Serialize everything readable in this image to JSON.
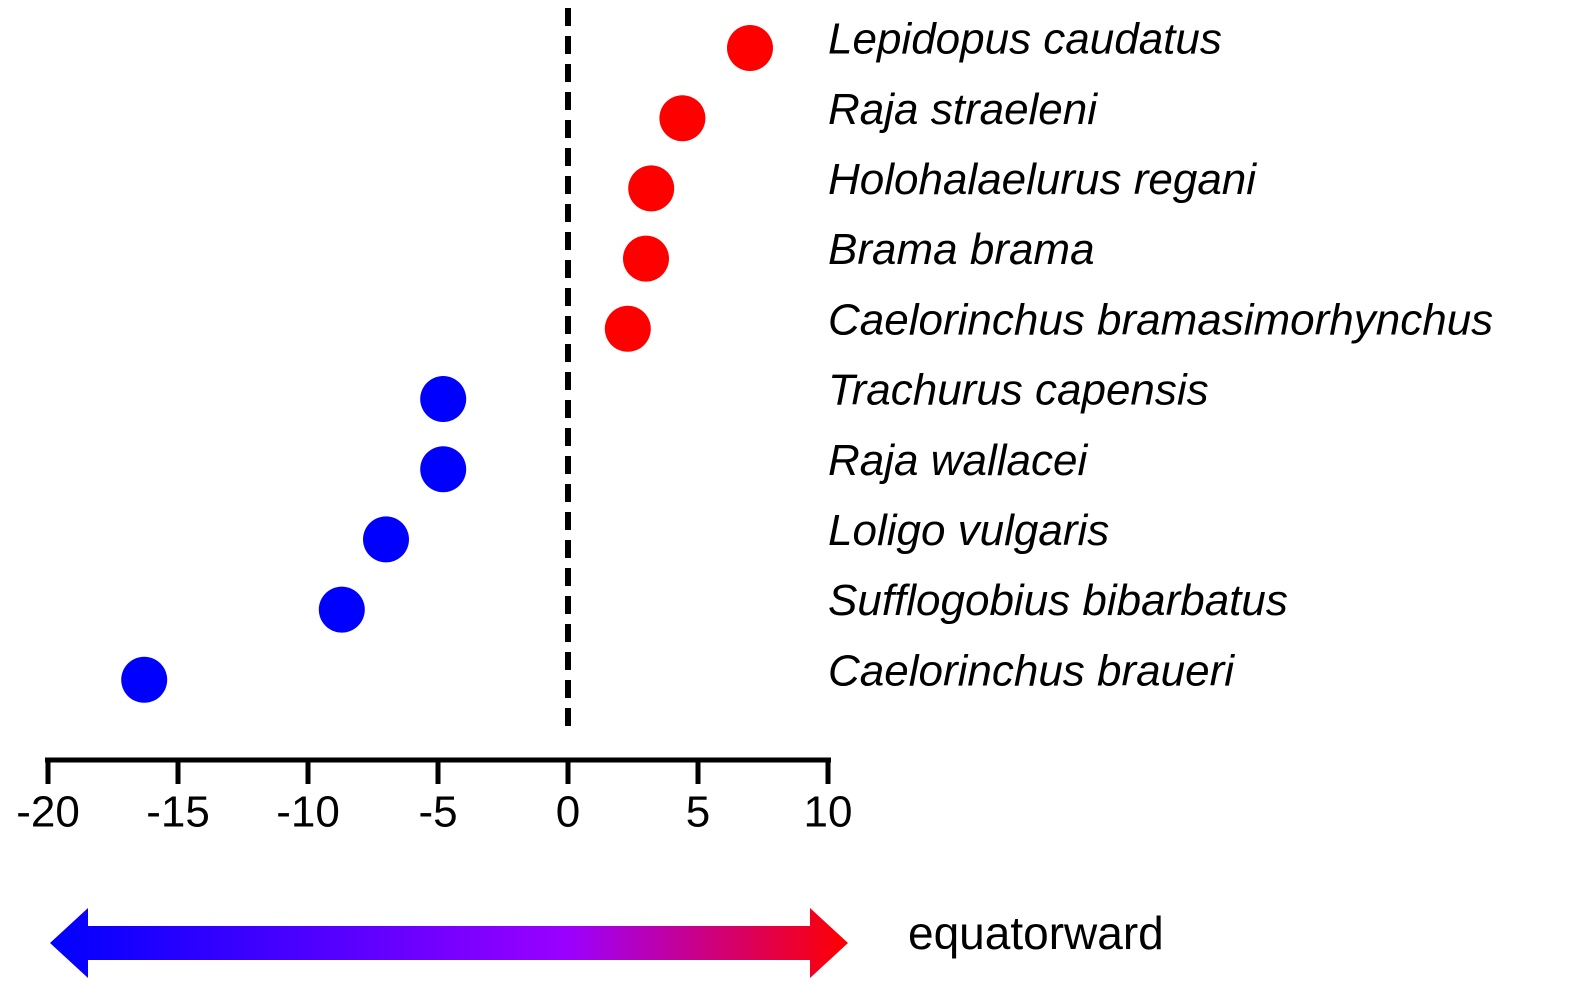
{
  "chart_data": {
    "type": "dot",
    "categories": [
      "Lepidopus caudatus",
      "Raja straeleni",
      "Holohalaelurus regani",
      "Brama brama",
      "Caelorinchus bramasimorhynchus",
      "Trachurus capensis",
      "Raja wallacei",
      "Loligo vulgaris",
      "Sufflogobius bibarbatus",
      "Caelorinchus braueri"
    ],
    "values": [
      7.0,
      4.4,
      3.2,
      3.0,
      2.3,
      -4.8,
      -4.8,
      -7.0,
      -8.7,
      -16.3
    ],
    "point_colors": [
      "#ff0000",
      "#ff0000",
      "#ff0000",
      "#ff0000",
      "#ff0000",
      "#0000ff",
      "#0000ff",
      "#0000ff",
      "#0000ff",
      "#0000ff"
    ],
    "xlim": [
      -20,
      10
    ],
    "xticks": [
      -20,
      -15,
      -10,
      -5,
      0,
      5,
      10
    ],
    "reference_line": 0,
    "arrow_label": "equatorward"
  }
}
